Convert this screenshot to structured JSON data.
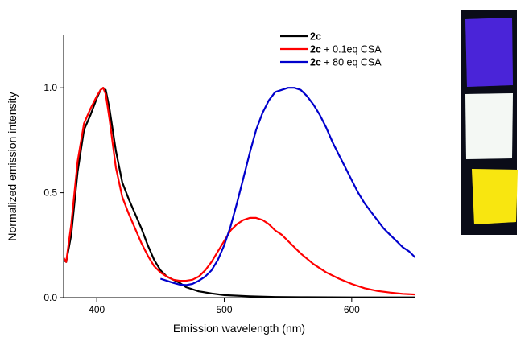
{
  "chart_data": {
    "type": "line",
    "xlabel": "Emission wavelength (nm)",
    "ylabel": "Normalized emission intensity",
    "xlim": [
      374,
      650
    ],
    "ylim": [
      0,
      1.25
    ],
    "xticks": [
      {
        "value": 400,
        "label": "400"
      },
      {
        "value": 500,
        "label": "500"
      },
      {
        "value": 600,
        "label": "600"
      }
    ],
    "yticks": [
      {
        "value": 0,
        "label": "0.0"
      },
      {
        "value": 0.5,
        "label": "0.5"
      },
      {
        "value": 1.0,
        "label": "1.0"
      }
    ],
    "legend_position": "top-right",
    "series": [
      {
        "name_bold": "2c",
        "name_rest": "",
        "color": "#000000",
        "points": [
          [
            374,
            0.18
          ],
          [
            376,
            0.17
          ],
          [
            380,
            0.3
          ],
          [
            385,
            0.6
          ],
          [
            390,
            0.8
          ],
          [
            395,
            0.87
          ],
          [
            400,
            0.95
          ],
          [
            403,
            0.99
          ],
          [
            405,
            1.0
          ],
          [
            407,
            0.99
          ],
          [
            410,
            0.9
          ],
          [
            415,
            0.7
          ],
          [
            420,
            0.55
          ],
          [
            425,
            0.47
          ],
          [
            430,
            0.4
          ],
          [
            435,
            0.33
          ],
          [
            440,
            0.25
          ],
          [
            445,
            0.18
          ],
          [
            450,
            0.13
          ],
          [
            455,
            0.1
          ],
          [
            460,
            0.085
          ],
          [
            465,
            0.07
          ],
          [
            470,
            0.05
          ],
          [
            480,
            0.03
          ],
          [
            490,
            0.02
          ],
          [
            500,
            0.012
          ],
          [
            520,
            0.006
          ],
          [
            540,
            0.003
          ],
          [
            560,
            0.002
          ],
          [
            600,
            0.001
          ],
          [
            650,
            0.001
          ]
        ]
      },
      {
        "name_bold": "2c",
        "name_rest": " + 0.1eq CSA",
        "color": "#ff0000",
        "points": [
          [
            374,
            0.19
          ],
          [
            376,
            0.17
          ],
          [
            380,
            0.35
          ],
          [
            385,
            0.65
          ],
          [
            390,
            0.83
          ],
          [
            395,
            0.9
          ],
          [
            400,
            0.96
          ],
          [
            403,
            0.99
          ],
          [
            405,
            1.0
          ],
          [
            407,
            0.97
          ],
          [
            410,
            0.85
          ],
          [
            415,
            0.62
          ],
          [
            420,
            0.48
          ],
          [
            425,
            0.4
          ],
          [
            430,
            0.33
          ],
          [
            435,
            0.26
          ],
          [
            440,
            0.2
          ],
          [
            445,
            0.15
          ],
          [
            450,
            0.12
          ],
          [
            455,
            0.1
          ],
          [
            460,
            0.085
          ],
          [
            465,
            0.08
          ],
          [
            470,
            0.08
          ],
          [
            475,
            0.085
          ],
          [
            480,
            0.1
          ],
          [
            485,
            0.13
          ],
          [
            490,
            0.17
          ],
          [
            495,
            0.22
          ],
          [
            500,
            0.27
          ],
          [
            505,
            0.32
          ],
          [
            510,
            0.35
          ],
          [
            515,
            0.37
          ],
          [
            520,
            0.38
          ],
          [
            525,
            0.38
          ],
          [
            530,
            0.37
          ],
          [
            535,
            0.35
          ],
          [
            540,
            0.32
          ],
          [
            545,
            0.3
          ],
          [
            550,
            0.27
          ],
          [
            555,
            0.24
          ],
          [
            560,
            0.21
          ],
          [
            570,
            0.16
          ],
          [
            580,
            0.12
          ],
          [
            590,
            0.09
          ],
          [
            600,
            0.065
          ],
          [
            610,
            0.045
          ],
          [
            620,
            0.032
          ],
          [
            630,
            0.024
          ],
          [
            640,
            0.018
          ],
          [
            650,
            0.015
          ]
        ]
      },
      {
        "name_bold": "2c",
        "name_rest": " + 80 eq CSA",
        "color": "#0000cc",
        "points": [
          [
            450,
            0.09
          ],
          [
            455,
            0.08
          ],
          [
            460,
            0.07
          ],
          [
            465,
            0.062
          ],
          [
            470,
            0.06
          ],
          [
            475,
            0.065
          ],
          [
            480,
            0.08
          ],
          [
            485,
            0.1
          ],
          [
            490,
            0.13
          ],
          [
            495,
            0.18
          ],
          [
            500,
            0.25
          ],
          [
            505,
            0.34
          ],
          [
            510,
            0.45
          ],
          [
            515,
            0.57
          ],
          [
            520,
            0.69
          ],
          [
            525,
            0.8
          ],
          [
            530,
            0.88
          ],
          [
            535,
            0.94
          ],
          [
            540,
            0.98
          ],
          [
            545,
            0.99
          ],
          [
            550,
            1.0
          ],
          [
            555,
            1.0
          ],
          [
            560,
            0.99
          ],
          [
            565,
            0.96
          ],
          [
            570,
            0.92
          ],
          [
            575,
            0.87
          ],
          [
            580,
            0.81
          ],
          [
            585,
            0.74
          ],
          [
            590,
            0.68
          ],
          [
            595,
            0.62
          ],
          [
            600,
            0.56
          ],
          [
            605,
            0.5
          ],
          [
            610,
            0.45
          ],
          [
            615,
            0.41
          ],
          [
            620,
            0.37
          ],
          [
            625,
            0.33
          ],
          [
            630,
            0.3
          ],
          [
            635,
            0.27
          ],
          [
            640,
            0.24
          ],
          [
            645,
            0.22
          ],
          [
            650,
            0.19
          ]
        ]
      }
    ]
  },
  "photos": [
    {
      "label": "blue emitting film photo",
      "fill": "#4a24d8",
      "glow": "#6a3cff"
    },
    {
      "label": "white emitting film photo",
      "fill": "#f4f8f4",
      "glow": "#bfe6e0"
    },
    {
      "label": "yellow emitting film photo",
      "fill": "#f8e610",
      "glow": "#fff24a"
    }
  ],
  "photo_background": "#0a0c18"
}
